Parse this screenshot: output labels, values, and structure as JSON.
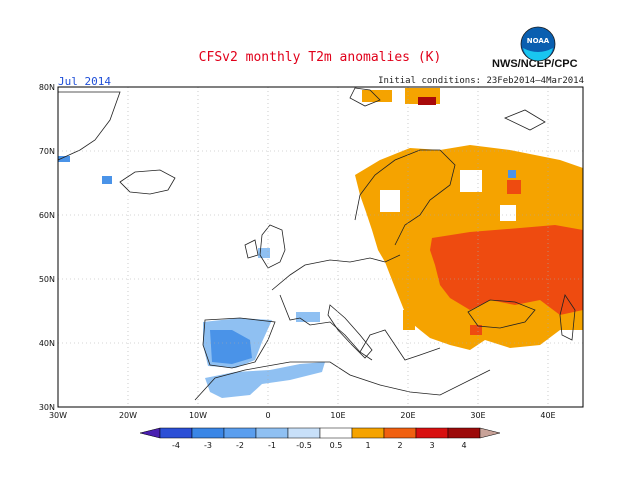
{
  "header": {
    "title": "CFSv2 monthly T2m anomalies (K)",
    "month": "Jul 2014",
    "initial_conditions": "Initial conditions: 23Feb2014–4Mar2014",
    "agency": "NWS/NCEP/CPC",
    "logo_text": "NOAA"
  },
  "map": {
    "lat_labels": [
      "80N",
      "70N",
      "60N",
      "50N",
      "40N",
      "30N"
    ],
    "lon_labels": [
      "30W",
      "20W",
      "10W",
      "0",
      "10E",
      "20E",
      "30E",
      "40E"
    ]
  },
  "legend": {
    "ticks": [
      "-4",
      "-3",
      "-2",
      "-1",
      "-0.5",
      "0.5",
      "1",
      "2",
      "3",
      "4"
    ],
    "colors": [
      "#4a1fb0",
      "#2b4fd6",
      "#3a86e6",
      "#6fb0f0",
      "#a8d0f7",
      "#ffffff",
      "#f5a300",
      "#f06010",
      "#d81010",
      "#9c0a0a",
      "#c8a298"
    ]
  },
  "colors": {
    "orange": "#f5a300",
    "red": "#ee4b10",
    "darkred": "#a80a0a",
    "lightblue": "#8fc0f2",
    "blue": "#4a93e8"
  }
}
